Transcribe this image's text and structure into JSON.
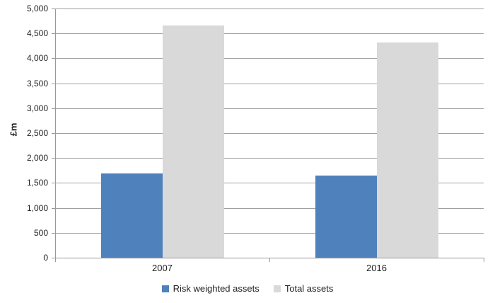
{
  "chart_data": {
    "type": "bar",
    "categories": [
      "2007",
      "2016"
    ],
    "series": [
      {
        "name": "Risk weighted assets",
        "color": "#4f81bd",
        "values": [
          1690,
          1650
        ]
      },
      {
        "name": "Total assets",
        "color": "#d9d9d9",
        "values": [
          4660,
          4320
        ]
      }
    ],
    "xlabel": "",
    "ylabel": "£m",
    "ylim": [
      0,
      5000
    ],
    "ytick_step": 500,
    "yticks": [
      {
        "value": 0,
        "label": "0"
      },
      {
        "value": 500,
        "label": "500"
      },
      {
        "value": 1000,
        "label": "1,000"
      },
      {
        "value": 1500,
        "label": "1,500"
      },
      {
        "value": 2000,
        "label": "2,000"
      },
      {
        "value": 2500,
        "label": "2,500"
      },
      {
        "value": 3000,
        "label": "3,000"
      },
      {
        "value": 3500,
        "label": "3,500"
      },
      {
        "value": 4000,
        "label": "4,000"
      },
      {
        "value": 4500,
        "label": "4,500"
      },
      {
        "value": 5000,
        "label": "5,000"
      }
    ],
    "grid": true,
    "legend_position": "bottom"
  },
  "colors": {
    "axis": "#989898",
    "gridline": "#a1a1a1",
    "text": "#1f1f1f",
    "background": "#ffffff"
  }
}
